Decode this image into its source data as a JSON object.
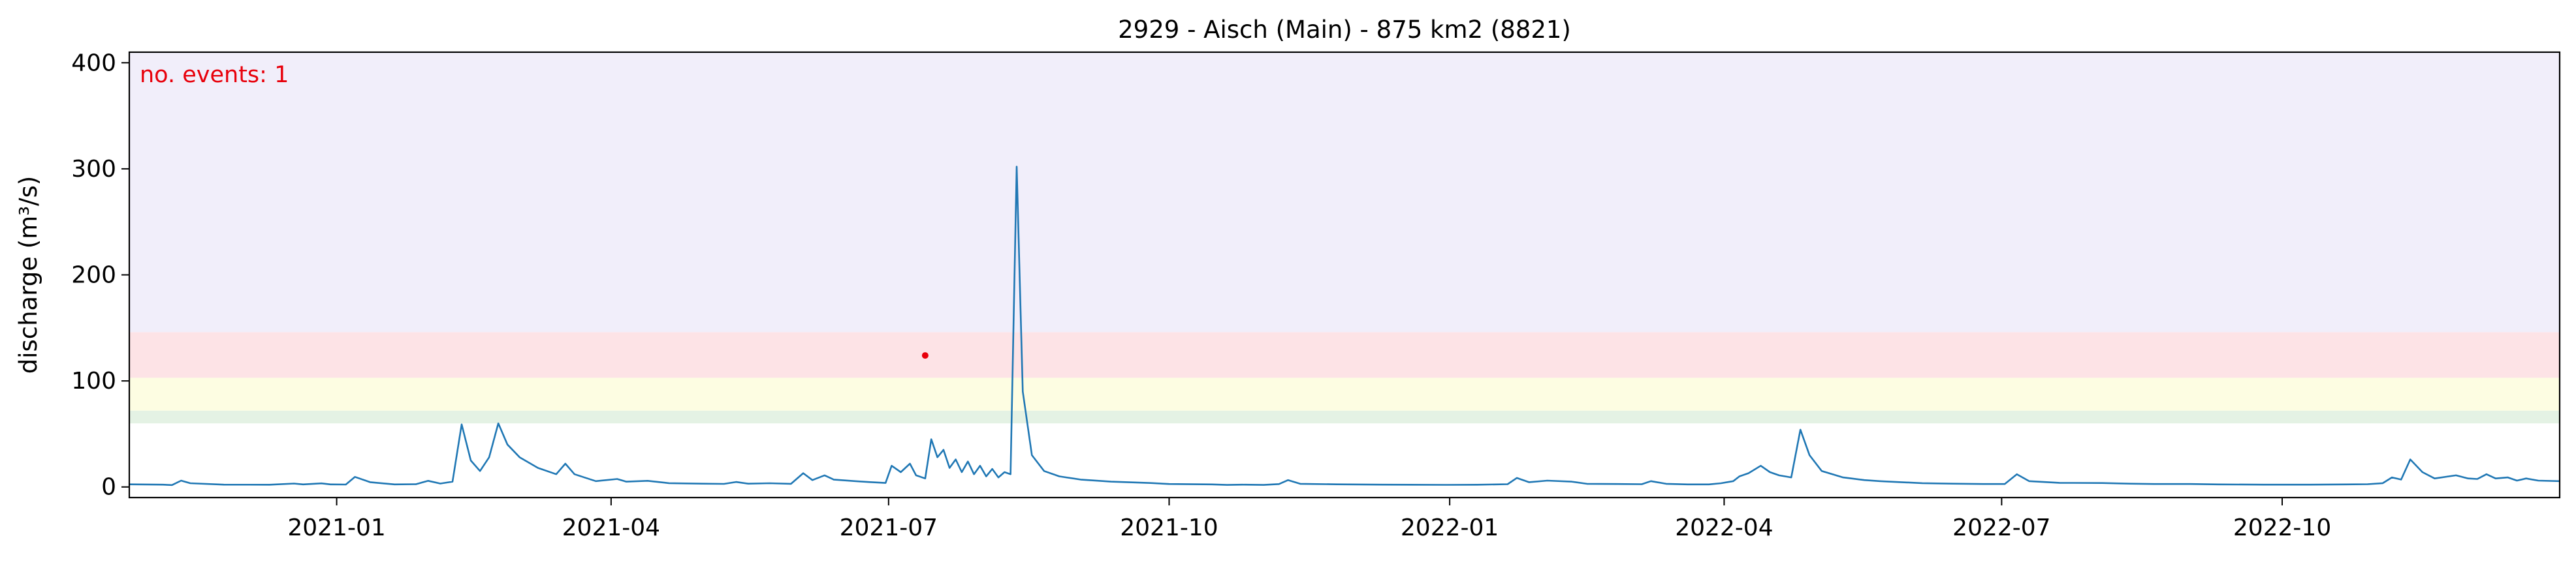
{
  "chart_data": {
    "type": "line",
    "title": "2929 - Aisch (Main) - 875 km2 (8821)",
    "xlabel": "",
    "ylabel": "discharge (m³/s)",
    "xlim": [
      "2020-10-25",
      "2022-12-31"
    ],
    "ylim": [
      -10,
      410
    ],
    "xticks": [
      "2021-01",
      "2021-04",
      "2021-07",
      "2021-10",
      "2022-01",
      "2022-04",
      "2022-07",
      "2022-10"
    ],
    "yticks": [
      0,
      100,
      200,
      300,
      400
    ],
    "annotation": "no. events: 1",
    "annotation_color": "#e8000b",
    "line_color": "#1f77b4",
    "bands": [
      {
        "from": 60,
        "to": 72,
        "color": "#e4f2e4"
      },
      {
        "from": 72,
        "to": 103,
        "color": "#fdfde2"
      },
      {
        "from": 103,
        "to": 146,
        "color": "#fde3e6"
      },
      {
        "from": 146,
        "to": 410,
        "color": "#f1eefa"
      }
    ],
    "events": [
      {
        "x": "2021-07-13",
        "y": 124,
        "color": "#e8000b"
      }
    ],
    "series": [
      {
        "points": [
          [
            "2020-10-25",
            2.5
          ],
          [
            "2020-11-05",
            2.2
          ],
          [
            "2020-11-08",
            1.8
          ],
          [
            "2020-11-11",
            6
          ],
          [
            "2020-11-14",
            3.5
          ],
          [
            "2020-11-25",
            2.2
          ],
          [
            "2020-12-10",
            2.1
          ],
          [
            "2020-12-18",
            3.2
          ],
          [
            "2020-12-21",
            2.4
          ],
          [
            "2020-12-27",
            3.4
          ],
          [
            "2020-12-30",
            2.4
          ],
          [
            "2021-01-04",
            2.3
          ],
          [
            "2021-01-07",
            9.5
          ],
          [
            "2021-01-12",
            4.5
          ],
          [
            "2021-01-20",
            2.4
          ],
          [
            "2021-01-27",
            2.6
          ],
          [
            "2021-01-31",
            5.8
          ],
          [
            "2021-02-04",
            3.2
          ],
          [
            "2021-02-08",
            5
          ],
          [
            "2021-02-11",
            59
          ],
          [
            "2021-02-14",
            25
          ],
          [
            "2021-02-17",
            15
          ],
          [
            "2021-02-20",
            28
          ],
          [
            "2021-02-23",
            60
          ],
          [
            "2021-02-26",
            40
          ],
          [
            "2021-03-02",
            28
          ],
          [
            "2021-03-08",
            18
          ],
          [
            "2021-03-14",
            12
          ],
          [
            "2021-03-17",
            22
          ],
          [
            "2021-03-20",
            12
          ],
          [
            "2021-03-27",
            5.5
          ],
          [
            "2021-04-03",
            7.5
          ],
          [
            "2021-04-06",
            5
          ],
          [
            "2021-04-13",
            5.8
          ],
          [
            "2021-04-20",
            3.6
          ],
          [
            "2021-05-01",
            3.1
          ],
          [
            "2021-05-08",
            2.9
          ],
          [
            "2021-05-12",
            4.7
          ],
          [
            "2021-05-16",
            3.1
          ],
          [
            "2021-05-23",
            3.5
          ],
          [
            "2021-05-30",
            3
          ],
          [
            "2021-06-03",
            13
          ],
          [
            "2021-06-06",
            6.5
          ],
          [
            "2021-06-10",
            11
          ],
          [
            "2021-06-13",
            7
          ],
          [
            "2021-06-20",
            5.5
          ],
          [
            "2021-06-25",
            4.6
          ],
          [
            "2021-06-30",
            3.8
          ],
          [
            "2021-07-02",
            20
          ],
          [
            "2021-07-05",
            14
          ],
          [
            "2021-07-08",
            22
          ],
          [
            "2021-07-10",
            11
          ],
          [
            "2021-07-13",
            8
          ],
          [
            "2021-07-15",
            45
          ],
          [
            "2021-07-17",
            28
          ],
          [
            "2021-07-19",
            35
          ],
          [
            "2021-07-21",
            18
          ],
          [
            "2021-07-23",
            26
          ],
          [
            "2021-07-25",
            14
          ],
          [
            "2021-07-27",
            24
          ],
          [
            "2021-07-29",
            12
          ],
          [
            "2021-07-31",
            20
          ],
          [
            "2021-08-02",
            10
          ],
          [
            "2021-08-04",
            17
          ],
          [
            "2021-08-06",
            9
          ],
          [
            "2021-08-08",
            14
          ],
          [
            "2021-08-10",
            12
          ],
          [
            "2021-08-12",
            302
          ],
          [
            "2021-08-14",
            90
          ],
          [
            "2021-08-17",
            30
          ],
          [
            "2021-08-21",
            15
          ],
          [
            "2021-08-26",
            10
          ],
          [
            "2021-09-02",
            7
          ],
          [
            "2021-09-12",
            5
          ],
          [
            "2021-09-25",
            3.7
          ],
          [
            "2021-10-01",
            2.8
          ],
          [
            "2021-10-15",
            2.4
          ],
          [
            "2021-10-20",
            1.9
          ],
          [
            "2021-10-25",
            2.2
          ],
          [
            "2021-11-01",
            1.9
          ],
          [
            "2021-11-06",
            2.7
          ],
          [
            "2021-11-09",
            6.5
          ],
          [
            "2021-11-13",
            3
          ],
          [
            "2021-11-25",
            2.5
          ],
          [
            "2021-12-10",
            2.2
          ],
          [
            "2021-12-31",
            2
          ],
          [
            "2022-01-10",
            2.1
          ],
          [
            "2022-01-20",
            2.6
          ],
          [
            "2022-01-23",
            8.5
          ],
          [
            "2022-01-27",
            4.5
          ],
          [
            "2022-02-02",
            6
          ],
          [
            "2022-02-10",
            5
          ],
          [
            "2022-02-15",
            3
          ],
          [
            "2022-02-25",
            2.8
          ],
          [
            "2022-03-05",
            2.6
          ],
          [
            "2022-03-08",
            5.5
          ],
          [
            "2022-03-13",
            3
          ],
          [
            "2022-03-20",
            2.4
          ],
          [
            "2022-03-27",
            2.4
          ],
          [
            "2022-03-31",
            3.5
          ],
          [
            "2022-04-04",
            5.5
          ],
          [
            "2022-04-06",
            10
          ],
          [
            "2022-04-09",
            13
          ],
          [
            "2022-04-13",
            20
          ],
          [
            "2022-04-16",
            14
          ],
          [
            "2022-04-19",
            11
          ],
          [
            "2022-04-23",
            9
          ],
          [
            "2022-04-26",
            54
          ],
          [
            "2022-04-29",
            30
          ],
          [
            "2022-05-03",
            15
          ],
          [
            "2022-05-10",
            9
          ],
          [
            "2022-05-17",
            6.5
          ],
          [
            "2022-05-22",
            5.5
          ],
          [
            "2022-05-29",
            4.5
          ],
          [
            "2022-06-05",
            3.6
          ],
          [
            "2022-06-15",
            3.1
          ],
          [
            "2022-06-25",
            2.8
          ],
          [
            "2022-07-02",
            2.8
          ],
          [
            "2022-07-06",
            12
          ],
          [
            "2022-07-10",
            5.5
          ],
          [
            "2022-07-20",
            3.9
          ],
          [
            "2022-08-03",
            3.7
          ],
          [
            "2022-08-12",
            3.1
          ],
          [
            "2022-08-20",
            2.8
          ],
          [
            "2022-09-01",
            2.8
          ],
          [
            "2022-09-10",
            2.4
          ],
          [
            "2022-09-25",
            2.2
          ],
          [
            "2022-10-10",
            2.2
          ],
          [
            "2022-10-22",
            2.4
          ],
          [
            "2022-10-29",
            2.6
          ],
          [
            "2022-11-03",
            3.6
          ],
          [
            "2022-11-06",
            9
          ],
          [
            "2022-11-09",
            7
          ],
          [
            "2022-11-12",
            26
          ],
          [
            "2022-11-16",
            14
          ],
          [
            "2022-11-20",
            8
          ],
          [
            "2022-11-27",
            11
          ],
          [
            "2022-12-01",
            8
          ],
          [
            "2022-12-04",
            7.5
          ],
          [
            "2022-12-07",
            12
          ],
          [
            "2022-12-10",
            8
          ],
          [
            "2022-12-14",
            9
          ],
          [
            "2022-12-17",
            6
          ],
          [
            "2022-12-20",
            8
          ],
          [
            "2022-12-24",
            6
          ],
          [
            "2022-12-31",
            5.5
          ]
        ]
      }
    ]
  }
}
